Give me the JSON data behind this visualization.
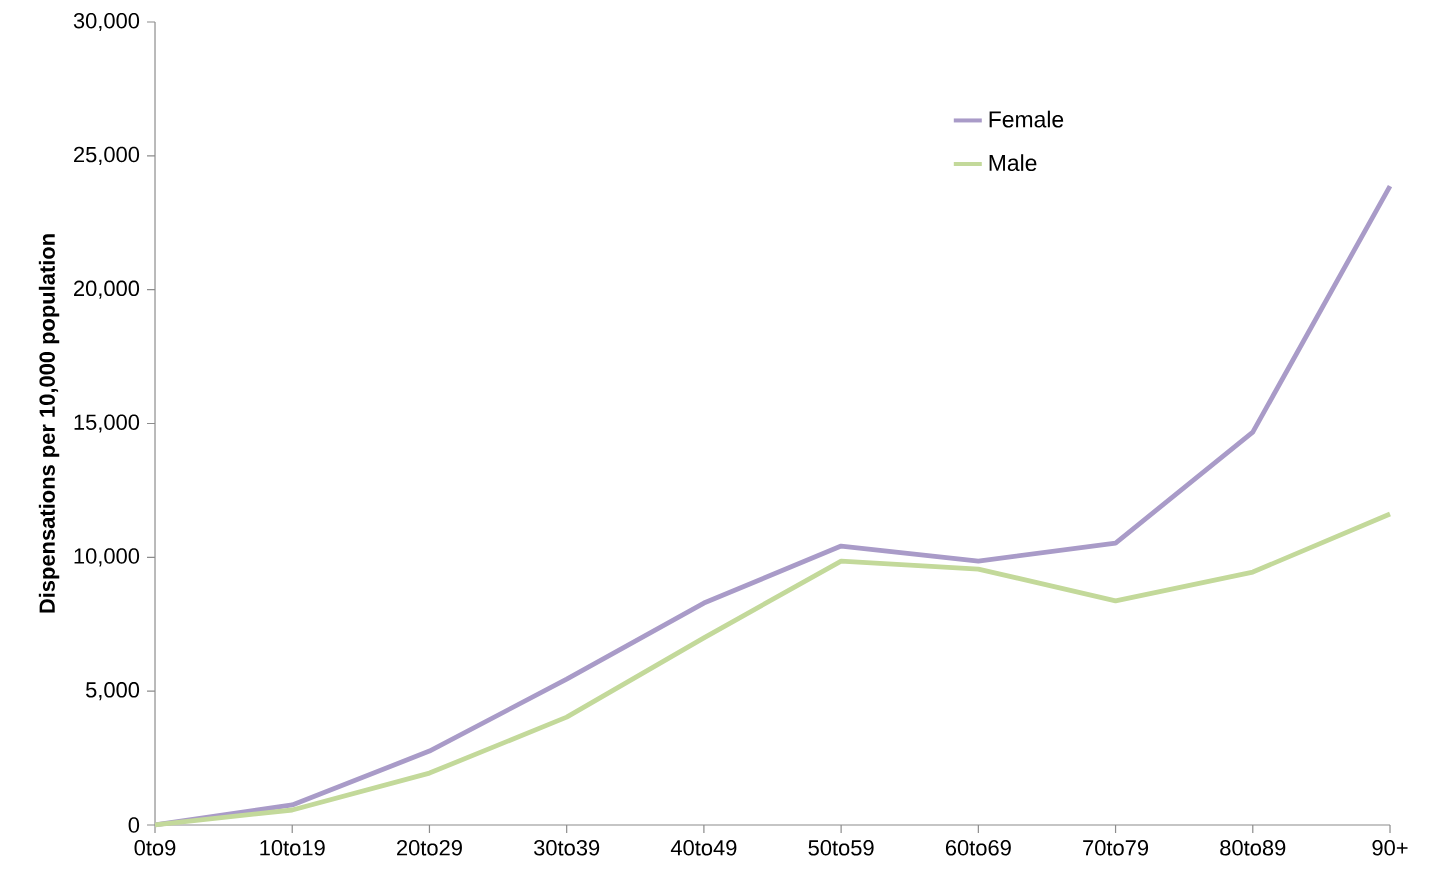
{
  "chart_data": {
    "type": "line",
    "ylabel": "Dispensations per 10,000 population",
    "categories": [
      "0to9",
      "10to19",
      "20to29",
      "30to39",
      "40to49",
      "50to59",
      "60to69",
      "70to79",
      "80to89",
      "90+"
    ],
    "series": [
      {
        "name": "Female",
        "color": "#a99bc8",
        "values": [
          0,
          750,
          2760,
          5450,
          8290,
          10420,
          9860,
          10530,
          14680,
          23870
        ]
      },
      {
        "name": "Male",
        "color": "#c3d99a",
        "values": [
          0,
          560,
          1940,
          4030,
          6990,
          9860,
          9560,
          8370,
          9450,
          11620
        ]
      }
    ],
    "ylim": [
      0,
      30000
    ],
    "yticks": [
      {
        "value": 0,
        "label": "0"
      },
      {
        "value": 5000,
        "label": "5,000"
      },
      {
        "value": 10000,
        "label": "10,000"
      },
      {
        "value": 15000,
        "label": "15,000"
      },
      {
        "value": 20000,
        "label": "20,000"
      },
      {
        "value": 25000,
        "label": "25,000"
      },
      {
        "value": 30000,
        "label": "30,000"
      }
    ],
    "grid": false,
    "legend": "top right",
    "marker": "none",
    "line_style": "solid"
  }
}
